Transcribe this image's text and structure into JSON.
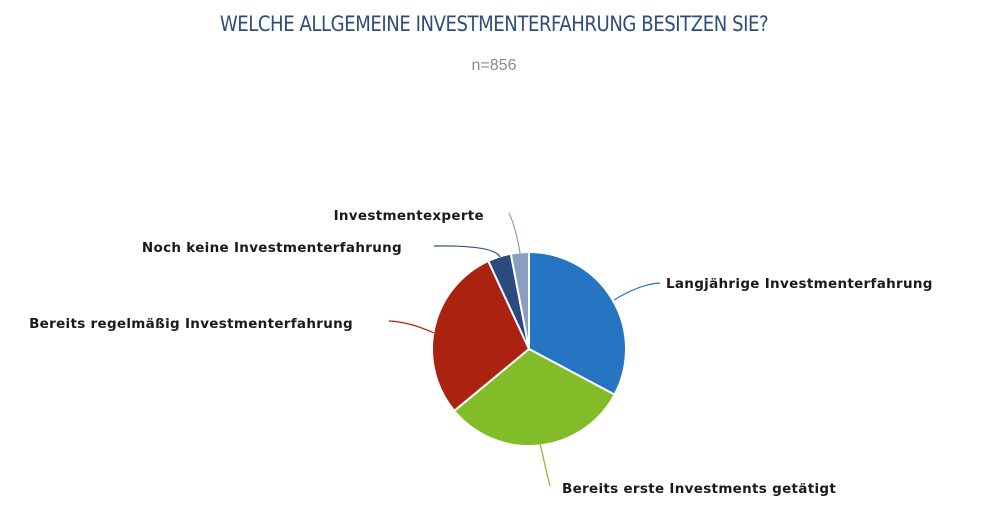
{
  "chart_data": {
    "type": "pie",
    "title": "WELCHE ALLGEMEINE INVESTMENTERFAHRUNG BESITZEN SIE?",
    "subtitle": "n=856",
    "slices": [
      {
        "label": "Langjährige Investmenterfahrung",
        "value": 32.8,
        "color": "#2575c2"
      },
      {
        "label": "Bereits erste Investments getätigt",
        "value": 31.2,
        "color": "#82bc28"
      },
      {
        "label": "Bereits regelmäßig Investmenterfahrung",
        "value": 29.1,
        "color": "#ab2310"
      },
      {
        "label": "Noch keine Investmenterfahrung",
        "value": 3.9,
        "color": "#2a4a80"
      },
      {
        "label": "Investmentexperte",
        "value": 3.0,
        "color": "#8a9ec0"
      }
    ]
  }
}
